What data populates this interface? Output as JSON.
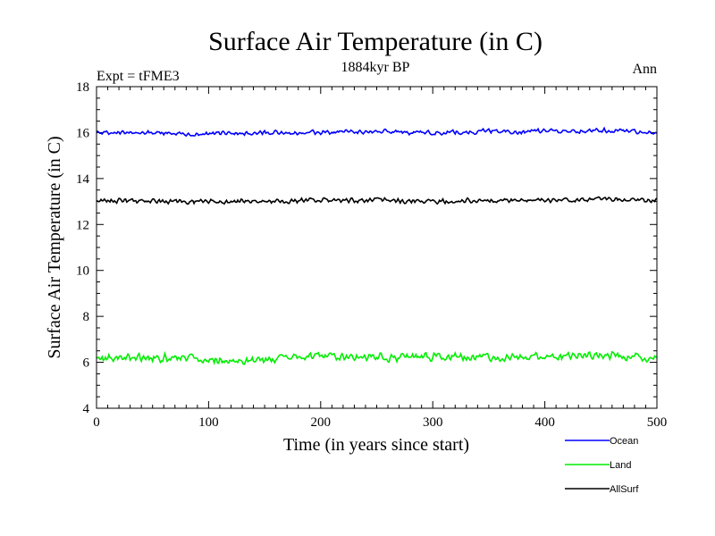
{
  "chart_data": {
    "type": "line",
    "title": "Surface Air Temperature (in C)",
    "subtitle": "1884kyr BP",
    "left_label": "Expt = tFME3",
    "right_label": "Ann",
    "xlabel": "Time (in years since start)",
    "ylabel": "Surface Air Temperature (in C)",
    "xlim": [
      0,
      500
    ],
    "ylim": [
      4,
      18
    ],
    "x_ticks": [
      0,
      100,
      200,
      300,
      400,
      500
    ],
    "x_tick_labels": [
      "0",
      "100",
      "200",
      "300",
      "400",
      "500"
    ],
    "y_ticks": [
      4,
      6,
      8,
      10,
      12,
      14,
      16,
      18
    ],
    "y_tick_labels": [
      "4",
      "6",
      "8",
      "10",
      "12",
      "14",
      "16",
      "18"
    ],
    "x_minor_step": 10,
    "y_minor_step": 0.5,
    "grid": false,
    "legend_position": "bottom-right, below plot",
    "series": [
      {
        "name": "Ocean",
        "color": "#0000ff",
        "mean": 16.0,
        "amplitude": 0.12,
        "x": [
          0,
          50,
          100,
          150,
          200,
          250,
          300,
          350,
          400,
          450,
          500
        ],
        "values": [
          16.0,
          16.0,
          15.95,
          16.0,
          16.0,
          16.05,
          16.0,
          16.05,
          16.05,
          16.1,
          16.0
        ]
      },
      {
        "name": "Land",
        "color": "#00ee00",
        "mean": 6.2,
        "amplitude": 0.22,
        "x": [
          0,
          50,
          100,
          150,
          200,
          250,
          300,
          350,
          400,
          450,
          500
        ],
        "values": [
          6.15,
          6.2,
          6.15,
          6.1,
          6.25,
          6.2,
          6.25,
          6.2,
          6.25,
          6.3,
          6.2
        ]
      },
      {
        "name": "AllSurf",
        "color": "#000000",
        "mean": 13.05,
        "amplitude": 0.13,
        "x": [
          0,
          50,
          100,
          150,
          200,
          250,
          300,
          350,
          400,
          450,
          500
        ],
        "values": [
          13.05,
          13.0,
          13.0,
          13.0,
          13.05,
          13.05,
          13.0,
          13.05,
          13.05,
          13.1,
          13.05
        ]
      }
    ]
  }
}
